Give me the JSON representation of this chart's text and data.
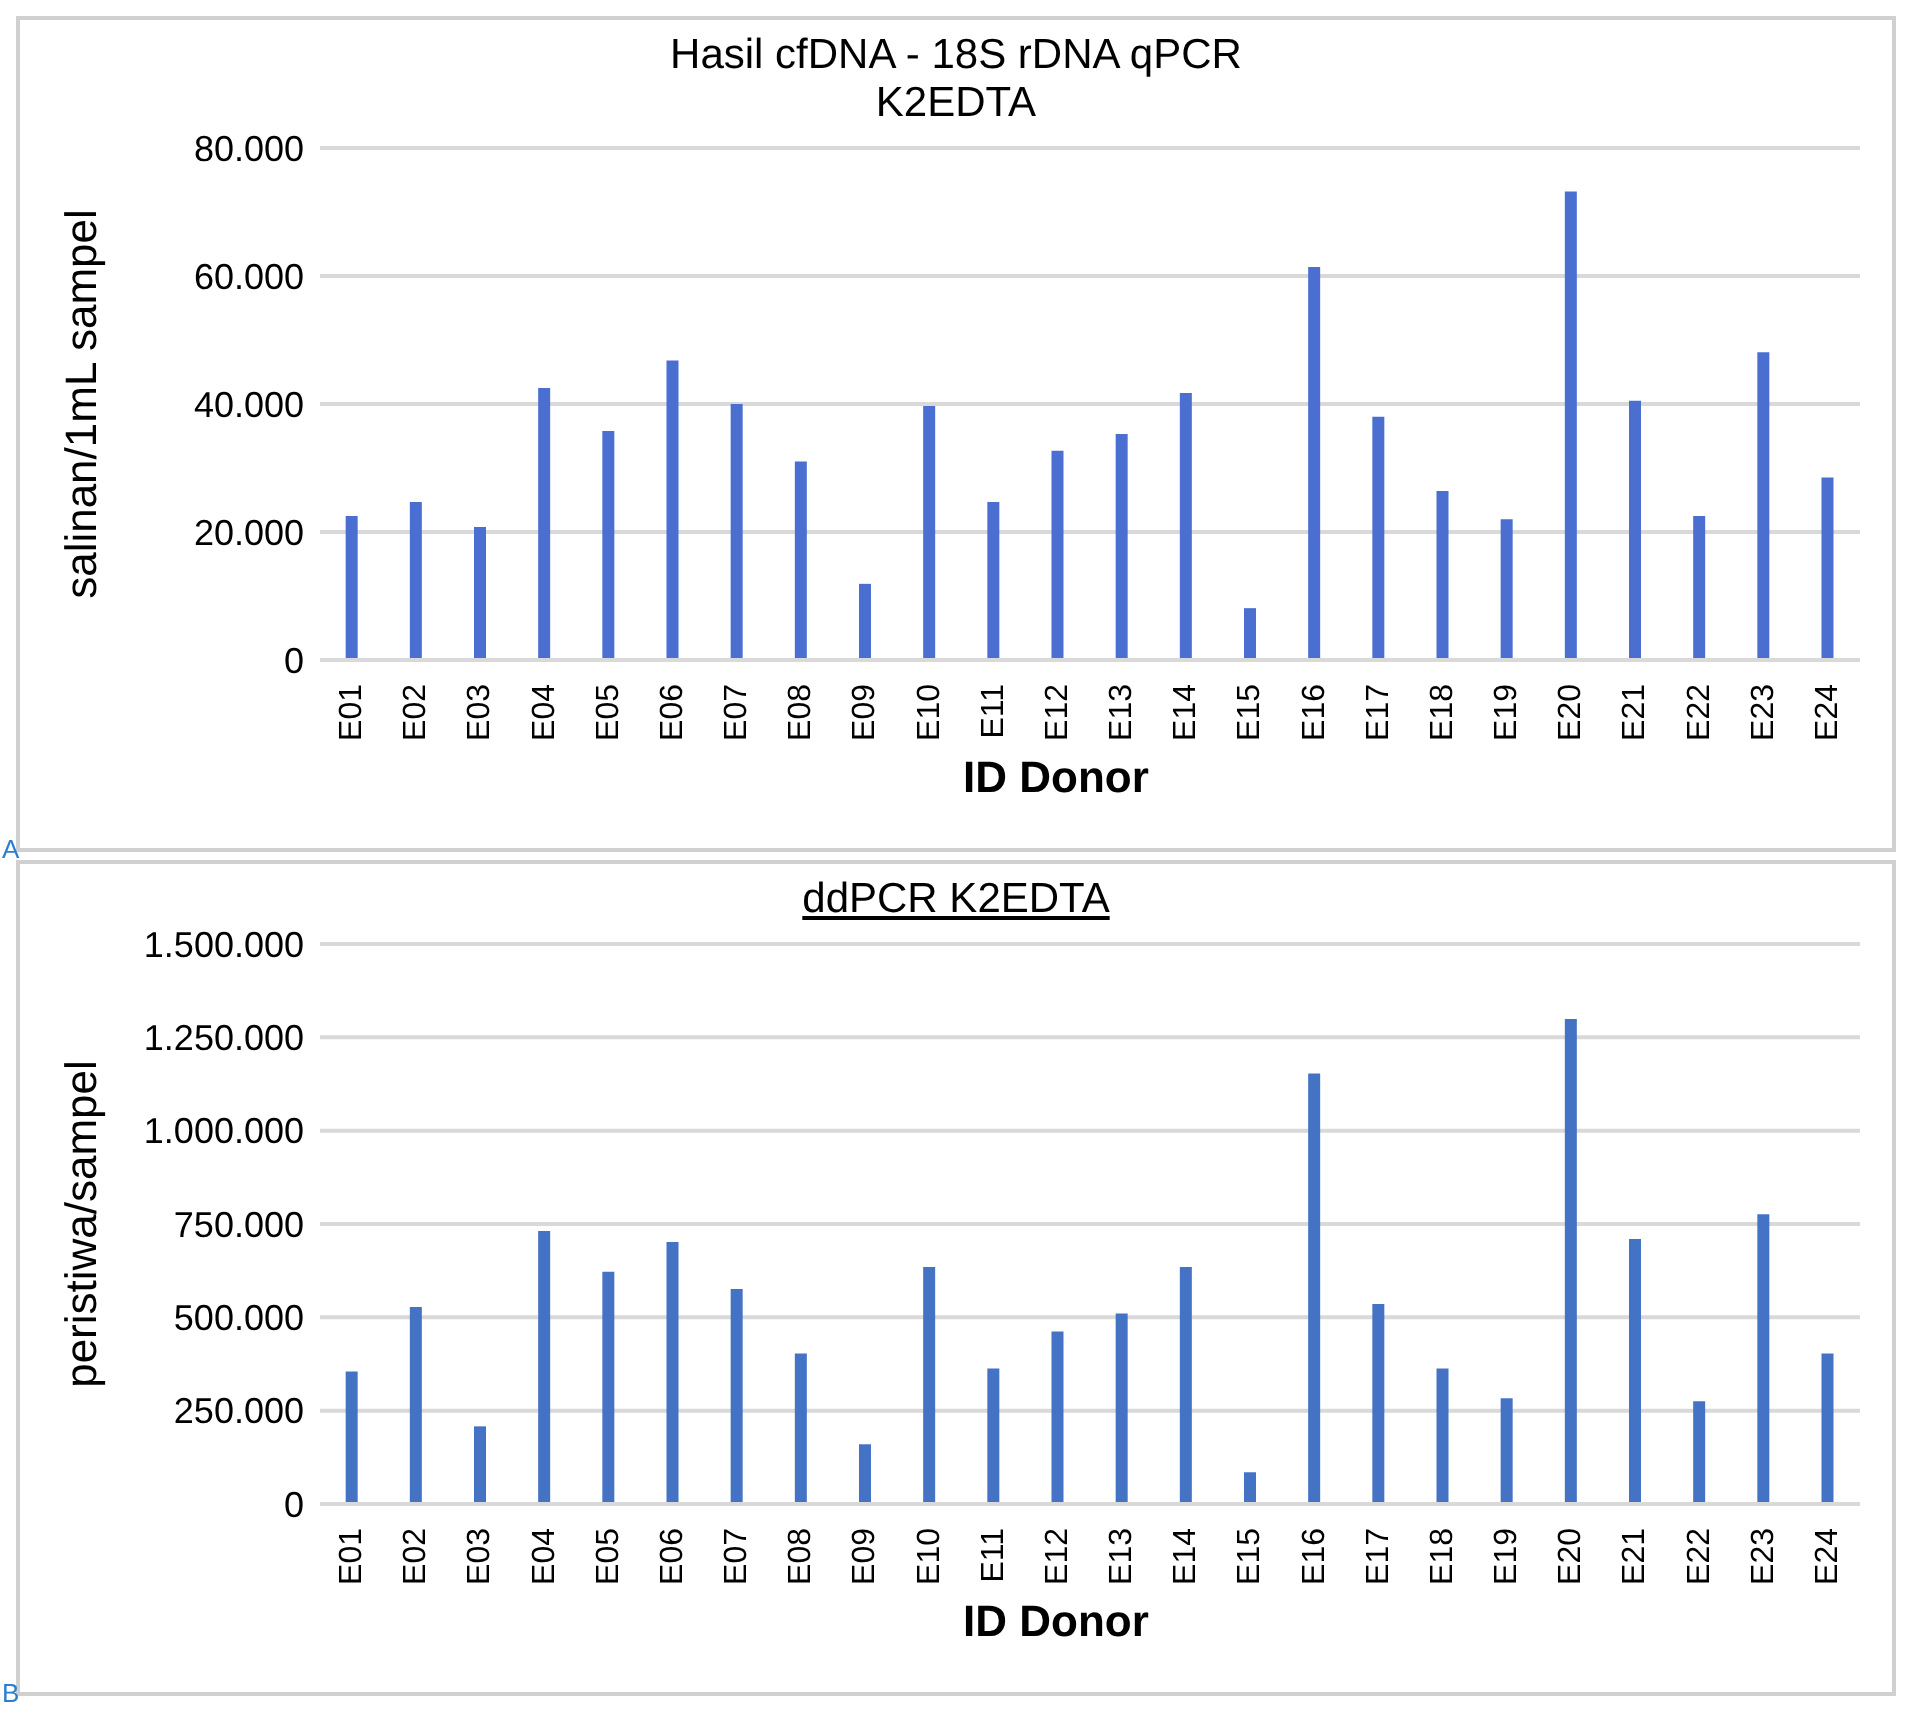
{
  "chart_data": [
    {
      "type": "bar",
      "title": "Hasil cfDNA - 18S rDNA qPCR",
      "subtitle": "K2EDTA",
      "xlabel": "ID Donor",
      "ylabel": "salinan/1mL sampel",
      "annotations": [
        "A"
      ],
      "categories": [
        "E01",
        "E02",
        "E03",
        "E04",
        "E05",
        "E06",
        "E07",
        "E08",
        "E09",
        "E10",
        "E11",
        "E12",
        "E13",
        "E14",
        "E15",
        "E16",
        "E17",
        "E18",
        "E19",
        "E20",
        "E21",
        "E22",
        "E23",
        "E24"
      ],
      "series": [
        {
          "color": "#4a6fd1",
          "values": [
            22500,
            24700,
            20800,
            42500,
            35800,
            46800,
            40000,
            31000,
            11900,
            39700,
            24700,
            32700,
            35300,
            41700,
            8100,
            61400,
            38000,
            26400,
            22000,
            73200,
            40500,
            22500,
            48100,
            28500
          ]
        }
      ],
      "ylim": [
        0,
        80000
      ],
      "yticks": [
        {
          "value": 0,
          "label": "0"
        },
        {
          "value": 20000,
          "label": "20.000"
        },
        {
          "value": 40000,
          "label": "40.000"
        },
        {
          "value": 60000,
          "label": "60.000"
        },
        {
          "value": 80000,
          "label": "80.000"
        }
      ],
      "grid": "y",
      "legend": false
    },
    {
      "type": "bar",
      "title": "ddPCR K2EDTA",
      "xlabel": "ID Donor",
      "ylabel": "peristiwa/sampel",
      "annotations": [
        "B"
      ],
      "categories": [
        "E01",
        "E02",
        "E03",
        "E04",
        "E05",
        "E06",
        "E07",
        "E08",
        "E09",
        "E10",
        "E11",
        "E12",
        "E13",
        "E14",
        "E15",
        "E16",
        "E17",
        "E18",
        "E19",
        "E20",
        "E21",
        "E22",
        "E23",
        "E24"
      ],
      "series": [
        {
          "color": "#4472c4",
          "values": [
            355000,
            528000,
            208000,
            731000,
            622000,
            702000,
            576000,
            403000,
            160000,
            635000,
            363000,
            462000,
            510000,
            635000,
            85000,
            1153000,
            536000,
            363000,
            283000,
            1299000,
            710000,
            275000,
            776000,
            403000
          ]
        }
      ],
      "ylim": [
        0,
        1500000
      ],
      "yticks": [
        {
          "value": 0,
          "label": "0"
        },
        {
          "value": 250000,
          "label": "250.000"
        },
        {
          "value": 500000,
          "label": "500.000"
        },
        {
          "value": 750000,
          "label": "750.000"
        },
        {
          "value": 1000000,
          "label": "1.000.000"
        },
        {
          "value": 1250000,
          "label": "1.250.000"
        },
        {
          "value": 1500000,
          "label": "1.500.000"
        }
      ],
      "grid": "y",
      "legend": false
    }
  ]
}
